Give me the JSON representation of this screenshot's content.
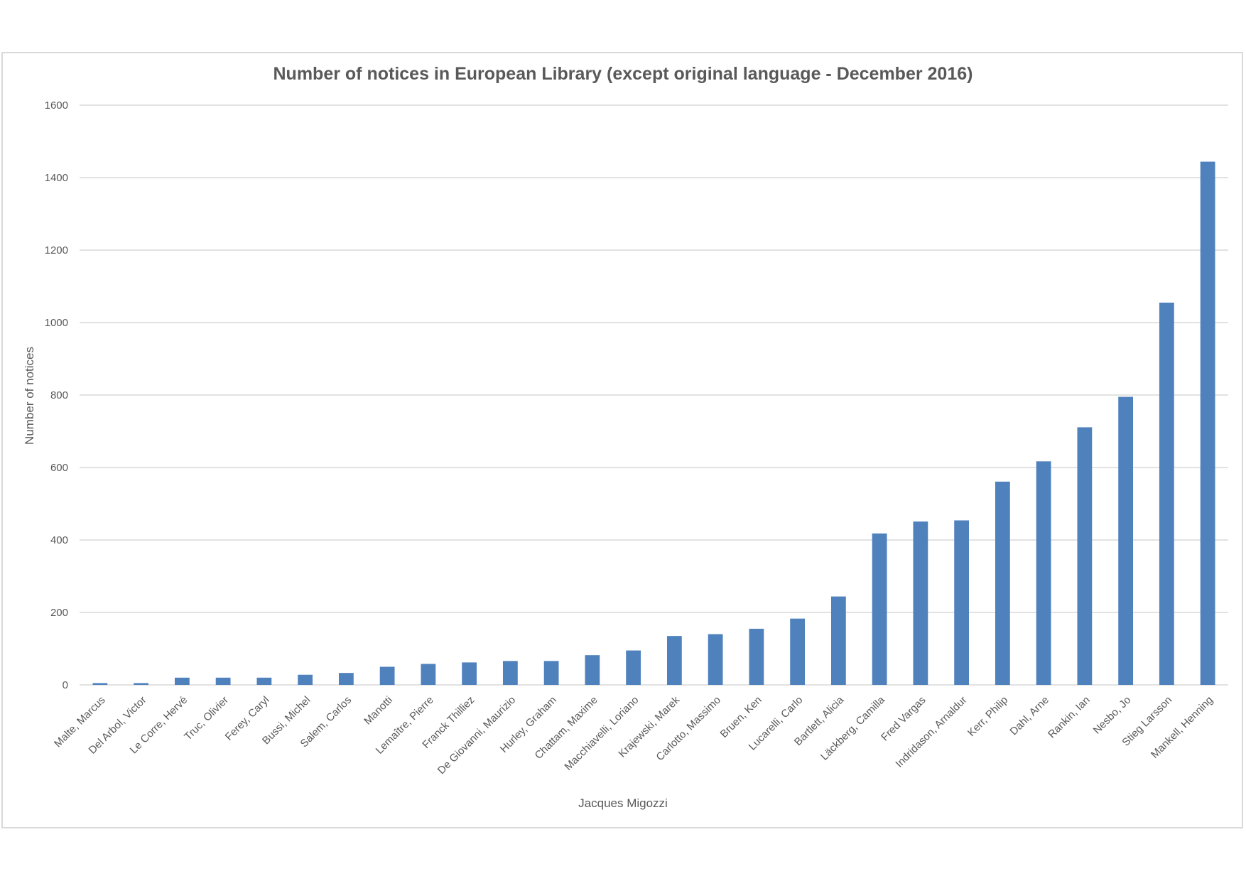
{
  "chart_data": {
    "type": "bar",
    "title": "Number of notices in European Library (except original language - December 2016)",
    "xlabel": "Jacques Migozzi",
    "ylabel": "Number of notices",
    "ylim": [
      0,
      1600
    ],
    "yticks": [
      0,
      200,
      400,
      600,
      800,
      1000,
      1200,
      1400,
      1600
    ],
    "grid": true,
    "bar_color": "#4f81bd",
    "categories": [
      "Malte, Marcus",
      "Del Arbol, Victor",
      "Le Corre, Hervé",
      "Truc, Olivier",
      "Ferey,  Caryl",
      "Bussi, Michel",
      "Salem, Carlos",
      "Manotti",
      "Lemaître, Pierre",
      "Franck Thilliez",
      "De Giovanni, Maurizio",
      "Hurley, Graham",
      "Chattam, Maxime",
      "Macchiavelli, Loriano",
      "Krajewski, Marek",
      "Carlotto, Massimo",
      "Bruen, Ken",
      "Lucarelli, Carlo",
      "Bartlett, Alicia",
      "Läckberg, Camilla",
      "Fred Vargas",
      "Indridason, Arnaldur",
      "Kerr, Philip",
      "Dahl, Arne",
      "Rankin, Ian",
      "Nesbo, Jo",
      "Stieg Larsson",
      "Mankell, Henning"
    ],
    "values": [
      5,
      5,
      20,
      20,
      20,
      28,
      33,
      50,
      58,
      62,
      66,
      66,
      82,
      95,
      135,
      140,
      155,
      183,
      244,
      418,
      451,
      454,
      561,
      617,
      711,
      795,
      1055,
      1444
    ]
  }
}
